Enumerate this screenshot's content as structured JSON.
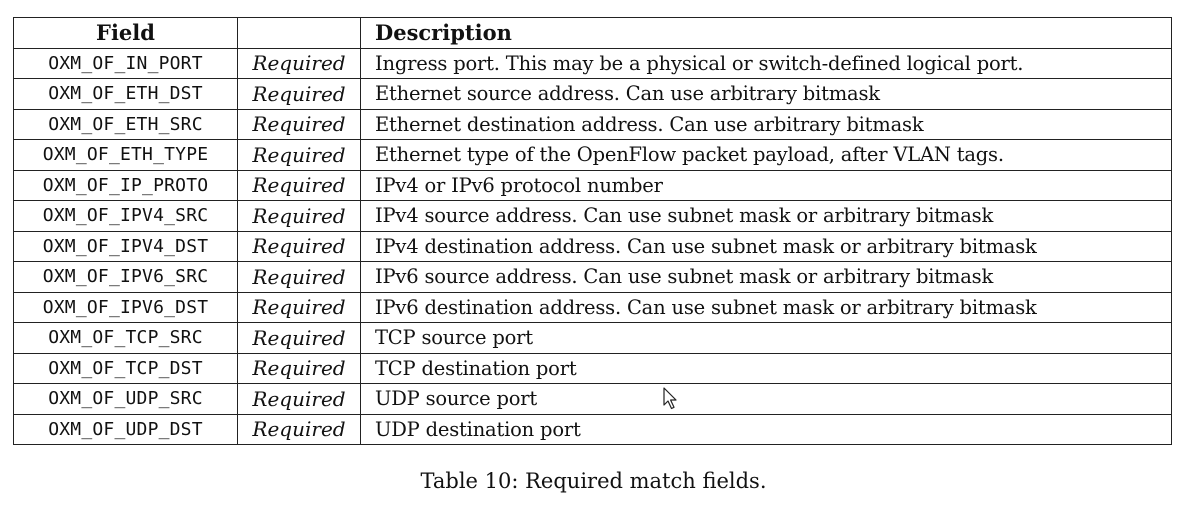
{
  "table": {
    "headers": [
      "Field",
      "",
      "Description"
    ],
    "rows": [
      {
        "field": "OXM_OF_IN_PORT",
        "req": "Required",
        "desc": "Ingress port. This may be a physical or switch-defined logical port."
      },
      {
        "field": "OXM_OF_ETH_DST",
        "req": "Required",
        "desc": "Ethernet source address. Can use arbitrary bitmask"
      },
      {
        "field": "OXM_OF_ETH_SRC",
        "req": "Required",
        "desc": "Ethernet destination address. Can use arbitrary bitmask"
      },
      {
        "field": "OXM_OF_ETH_TYPE",
        "req": "Required",
        "desc": "Ethernet type of the OpenFlow packet payload, after VLAN tags."
      },
      {
        "field": "OXM_OF_IP_PROTO",
        "req": "Required",
        "desc": "IPv4 or IPv6 protocol number"
      },
      {
        "field": "OXM_OF_IPV4_SRC",
        "req": "Required",
        "desc": "IPv4 source address. Can use subnet mask or arbitrary bitmask"
      },
      {
        "field": "OXM_OF_IPV4_DST",
        "req": "Required",
        "desc": "IPv4 destination address. Can use subnet mask or arbitrary bitmask"
      },
      {
        "field": "OXM_OF_IPV6_SRC",
        "req": "Required",
        "desc": "IPv6 source address. Can use subnet mask or arbitrary bitmask"
      },
      {
        "field": "OXM_OF_IPV6_DST",
        "req": "Required",
        "desc": "IPv6 destination address. Can use subnet mask or arbitrary bitmask"
      },
      {
        "field": "OXM_OF_TCP_SRC",
        "req": "Required",
        "desc": "TCP source port"
      },
      {
        "field": "OXM_OF_TCP_DST",
        "req": "Required",
        "desc": "TCP destination port"
      },
      {
        "field": "OXM_OF_UDP_SRC",
        "req": "Required",
        "desc": "UDP source port"
      },
      {
        "field": "OXM_OF_UDP_DST",
        "req": "Required",
        "desc": "UDP destination port"
      }
    ]
  },
  "caption": "Table 10: Required match fields.",
  "cursor": {
    "icon": "mouse-pointer-icon"
  }
}
